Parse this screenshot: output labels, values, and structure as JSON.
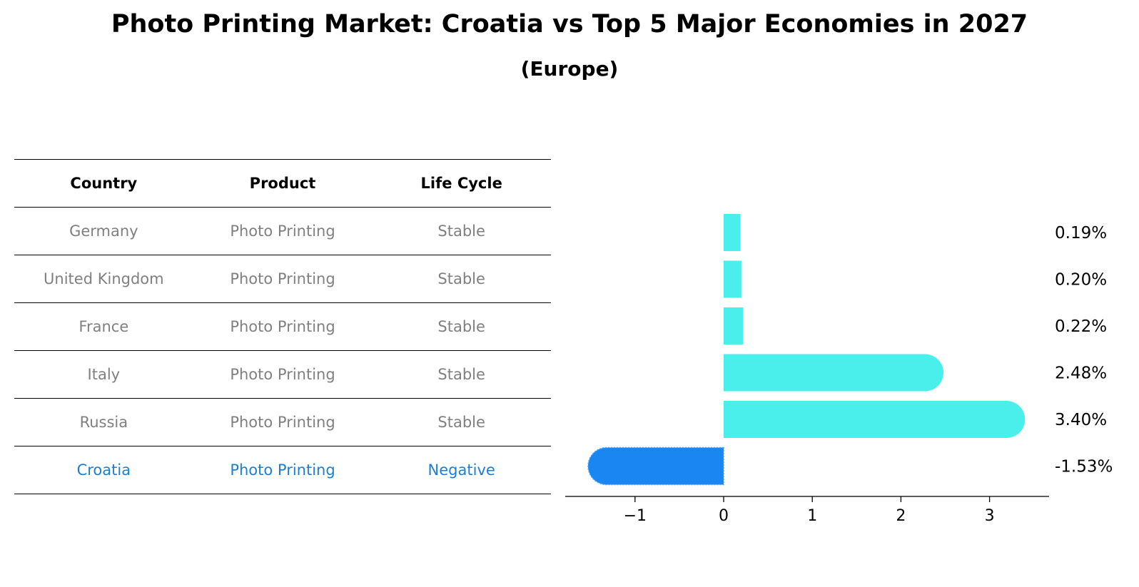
{
  "title": "Photo Printing Market: Croatia vs Top 5 Major Economies in 2027",
  "subtitle": "(Europe)",
  "table": {
    "headers": [
      "Country",
      "Product",
      "Life Cycle"
    ],
    "rows": [
      [
        "Germany",
        "Photo Printing",
        "Stable"
      ],
      [
        "United Kingdom",
        "Photo Printing",
        "Stable"
      ],
      [
        "France",
        "Photo Printing",
        "Stable"
      ],
      [
        "Italy",
        "Photo Printing",
        "Stable"
      ],
      [
        "Russia",
        "Photo Printing",
        "Stable"
      ],
      [
        "Croatia",
        "Photo Printing",
        "Negative"
      ]
    ]
  },
  "chart_data": {
    "type": "bar",
    "orientation": "horizontal",
    "categories": [
      "Germany",
      "United Kingdom",
      "France",
      "Italy",
      "Russia",
      "Croatia"
    ],
    "values": [
      0.19,
      0.2,
      0.22,
      2.48,
      3.4,
      -1.53
    ],
    "labels": [
      "0.19%",
      "0.20%",
      "0.22%",
      "2.48%",
      "3.40%",
      "-1.53%"
    ],
    "xlim": [
      -1.8,
      3.65
    ],
    "xticks": [
      -1,
      0,
      1,
      2,
      3
    ],
    "xtick_labels": [
      "−1",
      "0",
      "1",
      "2",
      "3"
    ],
    "colors": {
      "positive": "#4aeeea",
      "negative": "#1a86f2"
    },
    "grid": false
  }
}
